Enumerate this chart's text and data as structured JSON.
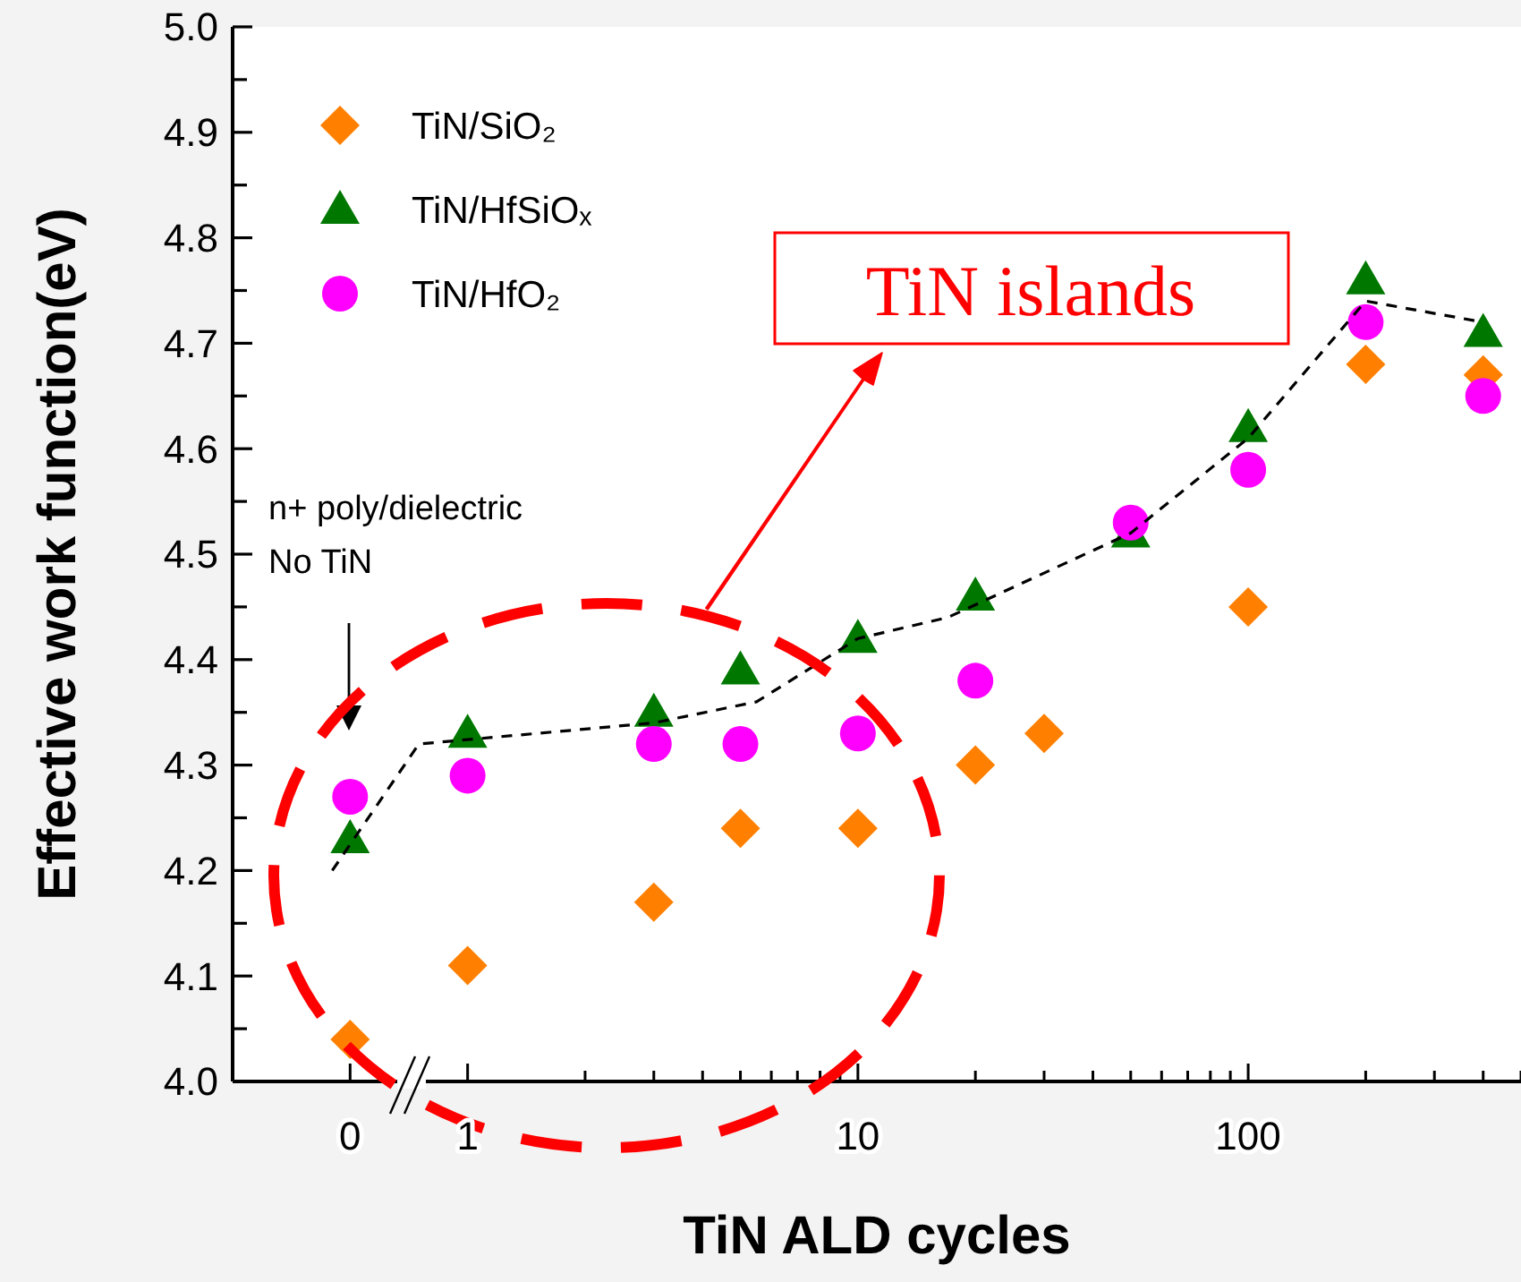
{
  "chart_data": {
    "type": "scatter",
    "xlabel": "TiN ALD cycles",
    "ylabel": "Effective work function(eV)",
    "log": "x",
    "xlim": [
      0.25,
      500
    ],
    "ylim": [
      4.0,
      5.0
    ],
    "xticks": [
      {
        "value": 0.5,
        "label": "0"
      },
      1,
      {
        "value": 2,
        "label": null
      },
      {
        "value": 3,
        "label": null
      },
      {
        "value": 4,
        "label": null
      },
      {
        "value": 5,
        "label": null
      },
      {
        "value": 6,
        "label": null
      },
      {
        "value": 7,
        "label": null
      },
      {
        "value": 8,
        "label": null
      },
      {
        "value": 9,
        "label": null
      },
      10,
      {
        "value": 20,
        "label": null
      },
      {
        "value": 30,
        "label": null
      },
      {
        "value": 40,
        "label": null
      },
      {
        "value": 50,
        "label": null
      },
      {
        "value": 60,
        "label": null
      },
      {
        "value": 70,
        "label": null
      },
      {
        "value": 80,
        "label": null
      },
      {
        "value": 90,
        "label": null
      },
      100,
      {
        "value": 200,
        "label": null
      },
      {
        "value": 300,
        "label": null
      },
      {
        "value": 400,
        "label": null
      },
      {
        "value": 500,
        "label": null
      }
    ],
    "yticks": [
      {
        "value": 4.0,
        "label": "4.0"
      },
      {
        "value": 4.05,
        "label": null
      },
      4.1,
      {
        "value": 4.15,
        "label": null
      },
      4.2,
      {
        "value": 4.25,
        "label": null
      },
      4.3,
      {
        "value": 4.35,
        "label": null
      },
      4.4,
      {
        "value": 4.45,
        "label": null
      },
      4.5,
      {
        "value": 4.55,
        "label": null
      },
      4.6,
      {
        "value": 4.65,
        "label": null
      },
      4.7,
      {
        "value": 4.75,
        "label": null
      },
      4.8,
      {
        "value": 4.85,
        "label": null
      },
      4.9,
      {
        "value": 4.95,
        "label": null
      },
      {
        "value": 5.0,
        "label": "5.0"
      }
    ],
    "grid": false,
    "legend": "top left",
    "series": [
      {
        "name": "TiN/SiO₂",
        "color": "#ff8000",
        "marker": "diamond",
        "x": [
          0.5,
          1,
          3,
          5,
          10,
          20,
          30,
          100,
          200,
          400
        ],
        "values": [
          4.04,
          4.11,
          4.17,
          4.24,
          4.24,
          4.3,
          4.33,
          4.45,
          4.68,
          4.67
        ]
      },
      {
        "name": "TiN/HfSiOₓ",
        "color": "#007800",
        "marker": "triangle",
        "x": [
          0.5,
          1,
          3,
          5,
          10,
          20,
          50,
          100,
          200,
          400
        ],
        "values": [
          4.23,
          4.33,
          4.35,
          4.39,
          4.42,
          4.46,
          4.52,
          4.62,
          4.76,
          4.71
        ]
      },
      {
        "name": "TiN/HfO₂",
        "color": "#ff00ff",
        "marker": "circle",
        "x": [
          0.5,
          1,
          3,
          5,
          10,
          20,
          50,
          100,
          200,
          400
        ],
        "values": [
          4.27,
          4.29,
          4.32,
          4.32,
          4.33,
          4.38,
          4.53,
          4.58,
          4.72,
          4.65
        ]
      },
      {
        "type": "line",
        "color": "#000000",
        "marker": "none",
        "line_style": "dashed",
        "x": [
          0.45,
          0.75,
          3,
          5.5,
          10,
          17,
          50,
          100,
          200,
          400
        ],
        "values": [
          4.2,
          4.32,
          4.34,
          4.36,
          4.42,
          4.44,
          4.52,
          4.61,
          4.74,
          4.72
        ]
      }
    ],
    "annotations": [
      "n+ poly/dielectric\nNo TiN",
      "TiN islands"
    ]
  }
}
